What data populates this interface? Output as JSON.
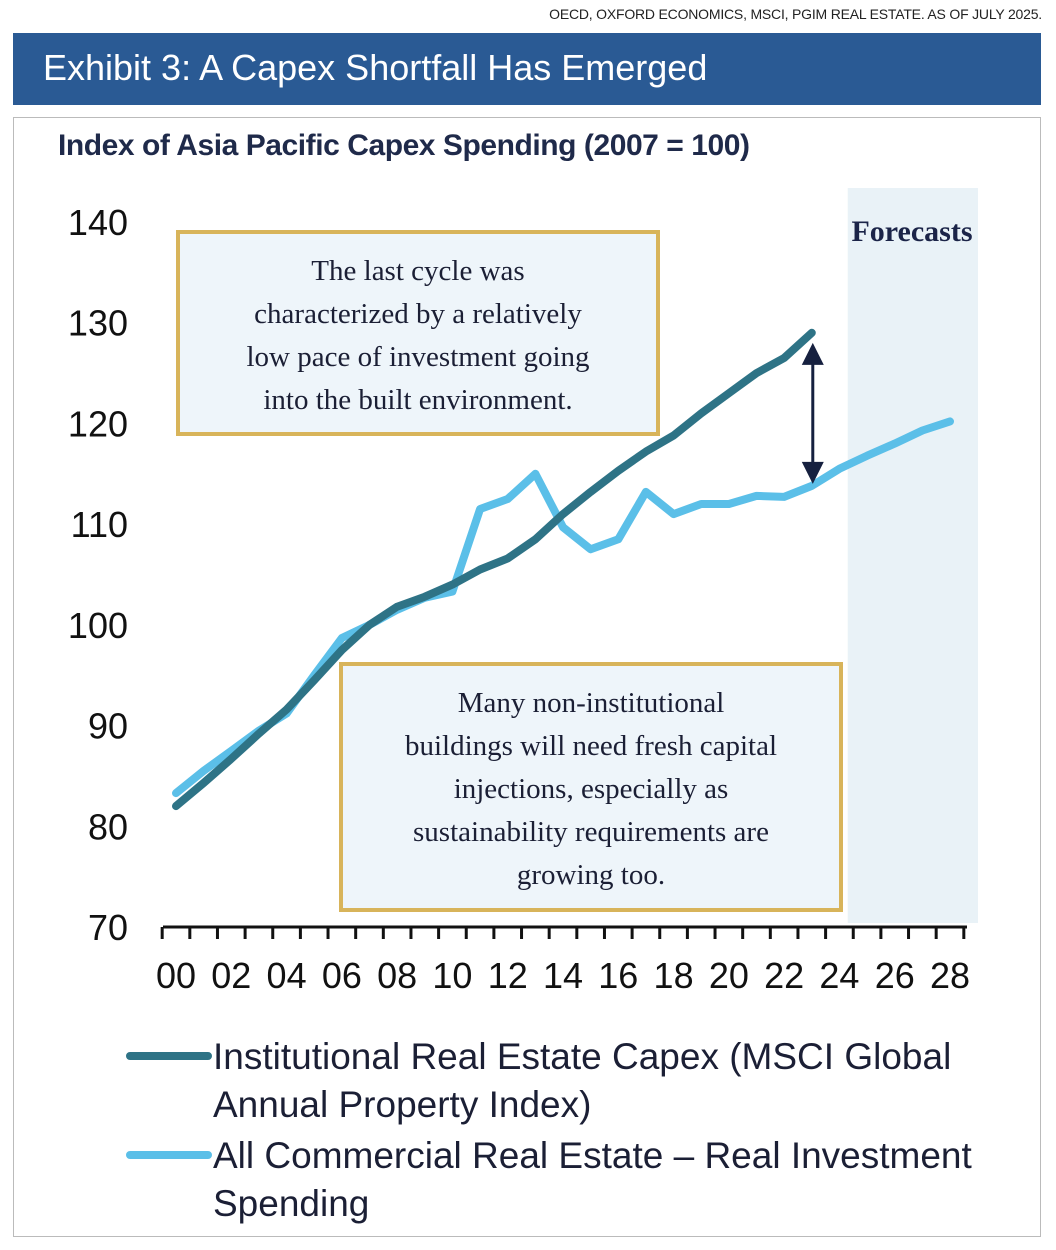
{
  "source": "OECD, OXFORD ECONOMICS, MSCI, PGIM REAL ESTATE. AS OF JULY 2025.",
  "header": {
    "title": "Exhibit 3: A Capex Shortfall Has Emerged"
  },
  "colors": {
    "header": "#2a5a94",
    "institutional": "#2e7386",
    "all_cre": "#5bbfe8",
    "forecast_shade": "#e9f2f7",
    "annotation_border": "#d8b45a",
    "arrow": "#16203f"
  },
  "chart_data": {
    "type": "line",
    "title": "Index of Asia Pacific Capex Spending (2007 = 100)",
    "ylim": [
      70,
      140
    ],
    "yticks": [
      "70",
      "80",
      "90",
      "100",
      "110",
      "120",
      "130",
      "140"
    ],
    "xlim": [
      2000,
      2028
    ],
    "xticks": [
      "00",
      "02",
      "04",
      "06",
      "08",
      "10",
      "12",
      "14",
      "16",
      "18",
      "20",
      "22",
      "24",
      "26",
      "28"
    ],
    "grid": false,
    "forecast_label": "Forecasts",
    "forecast_start": 2024,
    "series": [
      {
        "name": "Institutional Real Estate Capex (MSCI Global Annual Property Index)",
        "legend_lines": [
          "Institutional Real Estate Capex (MSCI Global",
          "Annual Property Index)"
        ],
        "x": [
          2000,
          2001,
          2002,
          2003,
          2004,
          2005,
          2006,
          2007,
          2008,
          2009,
          2010,
          2011,
          2012,
          2013,
          2014,
          2015,
          2016,
          2017,
          2018,
          2019,
          2020,
          2021,
          2022,
          2023
        ],
        "values": [
          82,
          84.3,
          86.7,
          89.2,
          91.6,
          94.5,
          97.5,
          100,
          101.8,
          102.8,
          104,
          105.5,
          106.6,
          108.5,
          111,
          113.2,
          115.3,
          117.2,
          118.8,
          121,
          123,
          125,
          126.5,
          129
        ]
      },
      {
        "name": "All Commercial Real Estate – Real Investment Spending",
        "legend_lines": [
          "All Commercial Real Estate – Real Investment",
          "Spending"
        ],
        "x": [
          2000,
          2001,
          2002,
          2003,
          2004,
          2005,
          2006,
          2007,
          2008,
          2009,
          2010,
          2011,
          2012,
          2013,
          2014,
          2015,
          2016,
          2017,
          2018,
          2019,
          2020,
          2021,
          2022,
          2023,
          2024,
          2025,
          2026,
          2027,
          2028
        ],
        "values": [
          83.3,
          85.5,
          87.5,
          89.5,
          91.2,
          95,
          98.7,
          100,
          101.5,
          102.7,
          103.3,
          111.5,
          112.5,
          115,
          109.7,
          107.5,
          108.5,
          113.2,
          111,
          112,
          112,
          112.8,
          112.7,
          113.8,
          115.5,
          116.8,
          118,
          119.3,
          120.2
        ]
      }
    ],
    "annotations": [
      {
        "lines": [
          "The last cycle was",
          "characterized by a relatively",
          "low pace of investment going",
          "into the built environment."
        ]
      },
      {
        "lines": [
          "Many non-institutional",
          "buildings will need fresh capital",
          "injections, especially as",
          "sustainability requirements are",
          "growing too."
        ]
      }
    ],
    "gap_arrow": {
      "x": 2023,
      "from": 114,
      "to": 128
    }
  }
}
